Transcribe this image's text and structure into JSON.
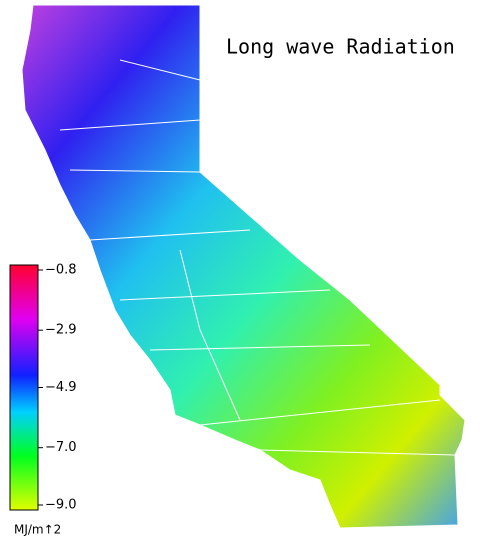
{
  "title": "Long wave Radiation",
  "colorbar": {
    "lim": [
      -9.0,
      -0.8
    ],
    "ticks": [
      {
        "value": -0.8,
        "label": "−0.8"
      },
      {
        "value": -2.9,
        "label": "−2.9"
      },
      {
        "value": -4.9,
        "label": "−4.9"
      },
      {
        "value": -7.0,
        "label": "−7.0"
      },
      {
        "value": -9.0,
        "label": "−9.0"
      }
    ],
    "unit": "MJ/m↑2"
  }
}
